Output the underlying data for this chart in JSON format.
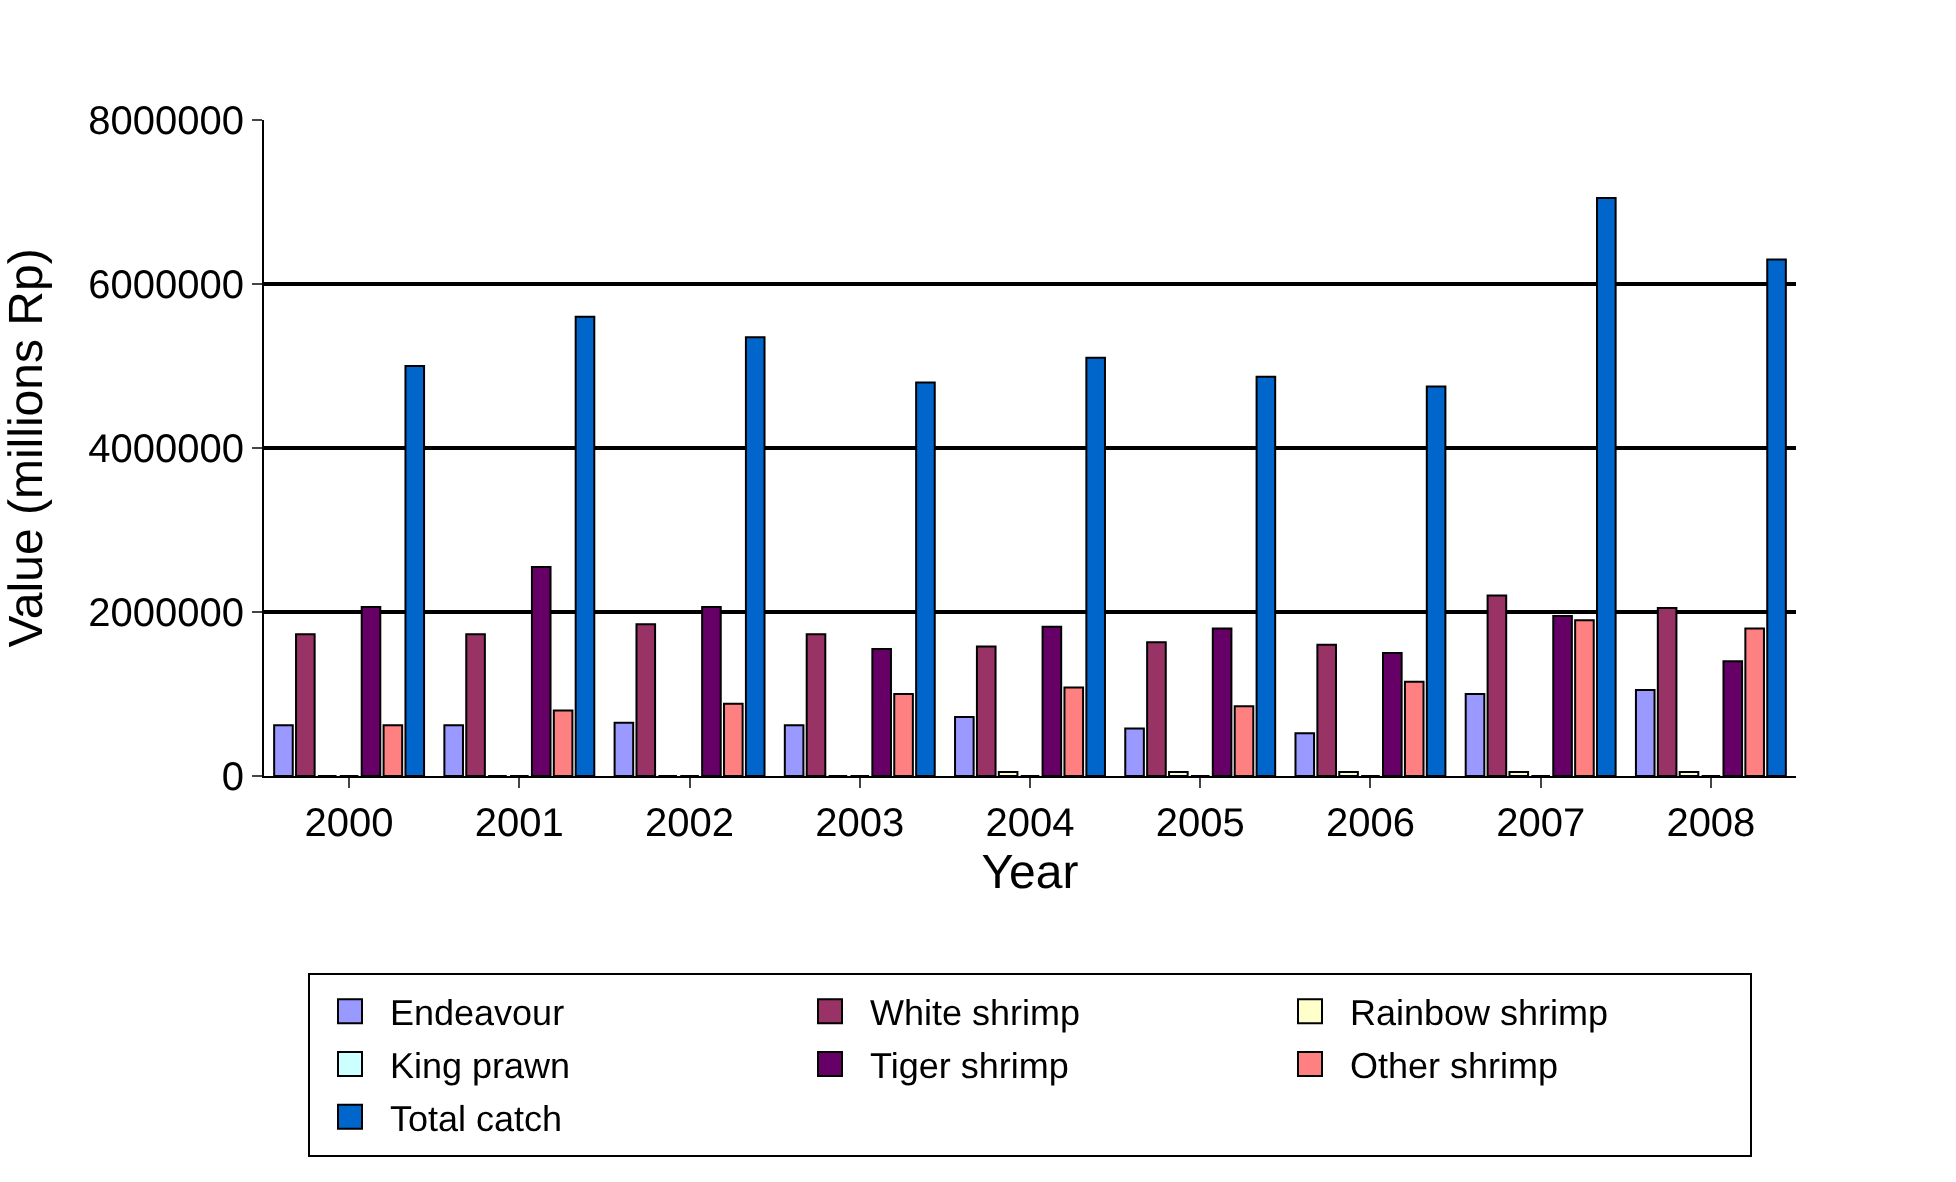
{
  "chart_data": {
    "type": "bar",
    "xlabel": "Year",
    "ylabel": "Value (millions Rp)",
    "categories": [
      "2000",
      "2001",
      "2002",
      "2003",
      "2004",
      "2005",
      "2006",
      "2007",
      "2008"
    ],
    "series": [
      {
        "name": "Endeavour",
        "color": "#9999ff",
        "values": [
          620000,
          620000,
          650000,
          620000,
          720000,
          580000,
          520000,
          1000000,
          1050000
        ]
      },
      {
        "name": "White shrimp",
        "color": "#993366",
        "values": [
          1730000,
          1730000,
          1850000,
          1730000,
          1580000,
          1630000,
          1600000,
          2200000,
          2050000
        ]
      },
      {
        "name": "Rainbow shrimp",
        "color": "#ffffcc",
        "values": [
          0,
          0,
          0,
          0,
          50000,
          50000,
          50000,
          50000,
          50000
        ]
      },
      {
        "name": "King prawn",
        "color": "#ccffff",
        "values": [
          0,
          0,
          0,
          0,
          0,
          0,
          0,
          0,
          0
        ]
      },
      {
        "name": "Tiger shrimp",
        "color": "#660066",
        "values": [
          2060000,
          2550000,
          2060000,
          1550000,
          1820000,
          1800000,
          1500000,
          1950000,
          1400000
        ]
      },
      {
        "name": "Other shrimp",
        "color": "#ff8080",
        "values": [
          620000,
          800000,
          880000,
          1000000,
          1080000,
          850000,
          1150000,
          1900000,
          1800000
        ]
      },
      {
        "name": "Total catch",
        "color": "#0066cc",
        "values": [
          5000000,
          5600000,
          5350000,
          4800000,
          5100000,
          4870000,
          4750000,
          7050000,
          6300000
        ]
      }
    ],
    "ylim": [
      0,
      8000000
    ],
    "yticks": [
      0,
      2000000,
      4000000,
      6000000,
      8000000
    ],
    "grid": "y",
    "legend": "bottom"
  }
}
